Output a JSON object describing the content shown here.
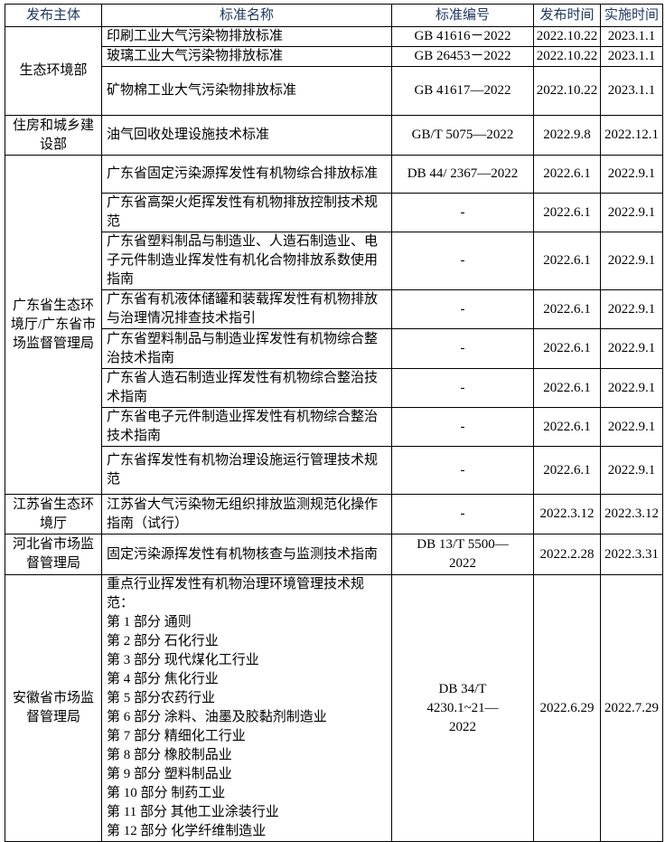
{
  "headers": [
    "发布主体",
    "标准名称",
    "标准编号",
    "发布时间",
    "实施时间"
  ],
  "groups": [
    {
      "publisher": "生态环境部",
      "rows": [
        {
          "name": "印刷工业大气污染物排放标准",
          "code": "GB 41616－2022",
          "published": "2022.10.22",
          "effective": "2023.1.1"
        },
        {
          "name": "玻璃工业大气污染物排放标准",
          "code": "GB 26453－2022",
          "published": "2022.10.22",
          "effective": "2023.1.1"
        },
        {
          "name": "矿物棉工业大气污染物排放标准",
          "code": "GB 41617—2022",
          "published": "2022.10.22",
          "effective": "2023.1.1"
        }
      ]
    },
    {
      "publisher": "住房和城乡建设部",
      "rows": [
        {
          "name": "油气回收处理设施技术标准",
          "code": "GB/T 5075—2022",
          "published": "2022.9.8",
          "effective": "2022.12.1"
        }
      ]
    },
    {
      "publisher": "广东省生态环境厅/广东省市场监督管理局",
      "rows": [
        {
          "name": "广东省固定污染源挥发性有机物综合排放标准",
          "code": "DB 44/ 2367—2022",
          "published": "2022.6.1",
          "effective": "2022.9.1"
        },
        {
          "name": "广东省高架火炬挥发性有机物排放控制技术规范",
          "code": "-",
          "published": "2022.6.1",
          "effective": "2022.9.1"
        },
        {
          "name": "广东省塑料制品与制造业、人造石制造业、电子元件制造业挥发性有机化合物排放系数使用指南",
          "code": "-",
          "published": "2022.6.1",
          "effective": "2022.9.1"
        },
        {
          "name": "广东省有机液体储罐和装载挥发性有机物排放与治理情况排查技术指引",
          "code": "-",
          "published": "2022.6.1",
          "effective": "2022.9.1"
        },
        {
          "name": "广东省塑料制品与制造业挥发性有机物综合整治技术指南",
          "code": "-",
          "published": "2022.6.1",
          "effective": "2022.9.1"
        },
        {
          "name": "广东省人造石制造业挥发性有机物综合整治技术指南",
          "code": "-",
          "published": "2022.6.1",
          "effective": "2022.9.1"
        },
        {
          "name": "广东省电子元件制造业挥发性有机物综合整治技术指南",
          "code": "-",
          "published": "2022.6.1",
          "effective": "2022.9.1"
        },
        {
          "name": "广东省挥发性有机物治理设施运行管理技术规范",
          "code": "-",
          "published": "2022.6.1",
          "effective": "2022.9.1"
        }
      ]
    },
    {
      "publisher": "江苏省生态环境厅",
      "rows": [
        {
          "name": "江苏省大气污染物无组织排放监测规范化操作指南（试行）",
          "code": "-",
          "published": "2022.3.12",
          "effective": "2022.3.12"
        }
      ]
    },
    {
      "publisher": "河北省市场监督管理局",
      "rows": [
        {
          "name": "固定污染源挥发性有机物核查与监测技术指南",
          "code": "DB 13/T 5500—2022",
          "published": "2022.2.28",
          "effective": "2022.3.31"
        }
      ]
    },
    {
      "publisher": "安徽省市场监督管理局",
      "rows": [
        {
          "name": "重点行业挥发性有机物治理环境管理技术规范：\n第 1 部分  通则\n第 2 部分  石化行业\n第 3 部分  现代煤化工行业\n第 4 部分  焦化行业\n第 5 部分农药行业\n第 6 部分  涂料、油墨及胶黏剂制造业\n第 7 部分  精细化工行业\n第 8 部分  橡胶制品业\n第 9 部分  塑料制品业\n第 10 部分  制药工业\n第 11 部分  其他工业涂装行业\n第 12 部分  化学纤维制造业",
          "code": "DB 34/T 4230.1~21—2022",
          "published": "2022.6.29",
          "effective": "2022.7.29"
        }
      ]
    }
  ]
}
